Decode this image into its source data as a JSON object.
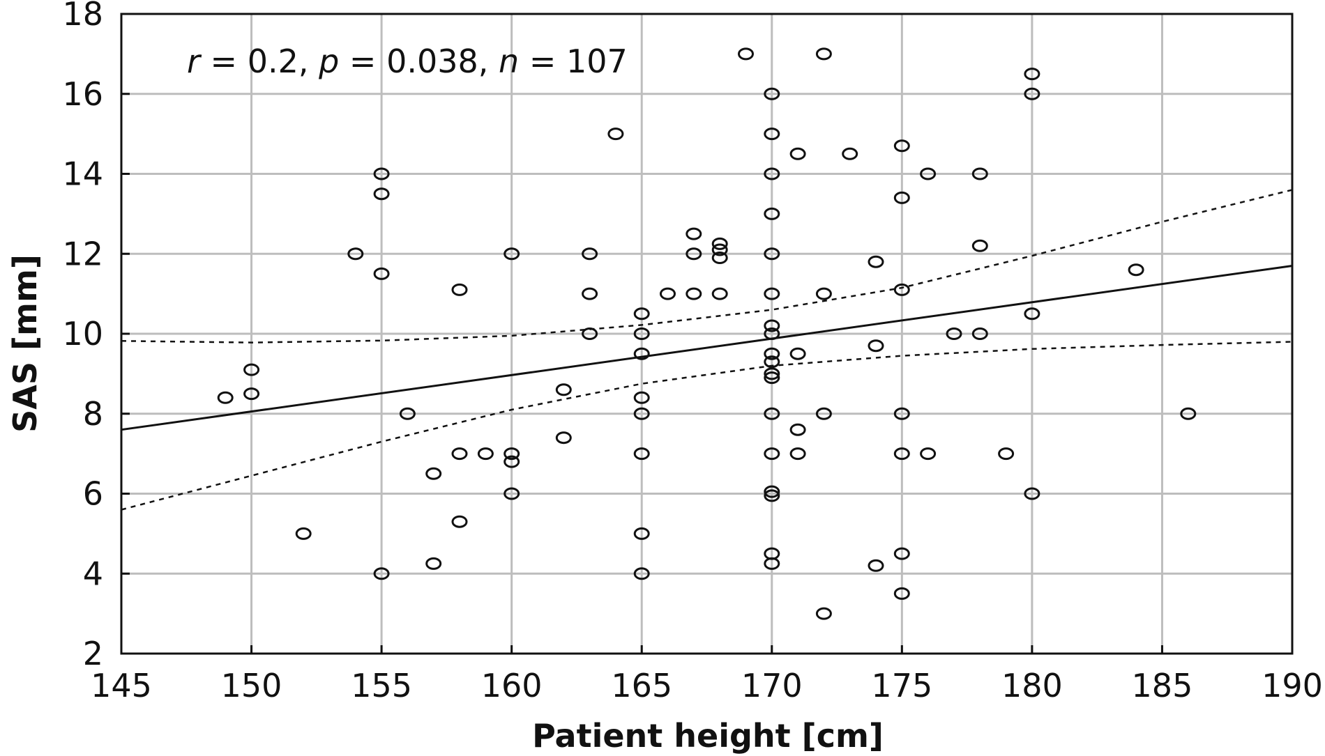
{
  "chart_data": {
    "type": "scatter",
    "title": "",
    "xlabel": "Patient height [cm]",
    "ylabel": "SAS [mm]",
    "xlim": [
      145,
      190
    ],
    "ylim": [
      2,
      18
    ],
    "xticks": [
      145,
      150,
      155,
      160,
      165,
      170,
      175,
      180,
      185,
      190
    ],
    "yticks": [
      2,
      4,
      6,
      8,
      10,
      12,
      14,
      16,
      18
    ],
    "grid": true,
    "annotation": {
      "r_symbol": "r",
      "r_value": " = 0.2, ",
      "p_symbol": "p",
      "p_value": " = 0.038, ",
      "n_symbol": "n",
      "n_value": " = 107"
    },
    "points": [
      [
        149,
        8.4
      ],
      [
        150,
        9.1
      ],
      [
        150,
        8.5
      ],
      [
        152,
        5.0
      ],
      [
        154,
        12.0
      ],
      [
        155,
        14.0
      ],
      [
        155,
        13.5
      ],
      [
        155,
        11.5
      ],
      [
        155,
        4.0
      ],
      [
        156,
        8.0
      ],
      [
        157,
        6.5
      ],
      [
        157,
        4.25
      ],
      [
        158,
        11.1
      ],
      [
        158,
        7.0
      ],
      [
        158,
        5.3
      ],
      [
        159,
        7.0
      ],
      [
        160,
        12.0
      ],
      [
        160,
        7.0
      ],
      [
        160,
        6.8
      ],
      [
        160,
        6.0
      ],
      [
        162,
        8.6
      ],
      [
        162,
        7.4
      ],
      [
        163,
        12.0
      ],
      [
        163,
        11.0
      ],
      [
        163,
        10.0
      ],
      [
        164,
        15.0
      ],
      [
        165,
        10.5
      ],
      [
        165,
        10.0
      ],
      [
        165,
        9.5
      ],
      [
        165,
        8.4
      ],
      [
        165,
        8.0
      ],
      [
        165,
        7.0
      ],
      [
        165,
        5.0
      ],
      [
        165,
        4.0
      ],
      [
        166,
        11.0
      ],
      [
        167,
        12.5
      ],
      [
        167,
        12.0
      ],
      [
        167,
        11.0
      ],
      [
        168,
        12.25
      ],
      [
        168,
        12.1
      ],
      [
        168,
        11.9
      ],
      [
        168,
        11.0
      ],
      [
        169,
        17.0
      ],
      [
        170,
        16.0
      ],
      [
        170,
        15.0
      ],
      [
        170,
        14.0
      ],
      [
        170,
        13.0
      ],
      [
        170,
        12.0
      ],
      [
        170,
        11.0
      ],
      [
        170,
        10.2
      ],
      [
        170,
        10.0
      ],
      [
        170,
        9.5
      ],
      [
        170,
        9.3
      ],
      [
        170,
        9.0
      ],
      [
        170,
        8.9
      ],
      [
        170,
        8.0
      ],
      [
        170,
        7.0
      ],
      [
        170,
        6.05
      ],
      [
        170,
        5.95
      ],
      [
        170,
        4.5
      ],
      [
        170,
        4.25
      ],
      [
        171,
        14.5
      ],
      [
        171,
        9.5
      ],
      [
        171,
        7.6
      ],
      [
        171,
        7.0
      ],
      [
        172,
        17.0
      ],
      [
        172,
        11.0
      ],
      [
        172,
        8.0
      ],
      [
        172,
        3.0
      ],
      [
        173,
        14.5
      ],
      [
        174,
        11.8
      ],
      [
        174,
        9.7
      ],
      [
        174,
        4.2
      ],
      [
        175,
        14.7
      ],
      [
        175,
        13.4
      ],
      [
        175,
        11.1
      ],
      [
        175,
        8.0
      ],
      [
        175,
        7.0
      ],
      [
        175,
        4.5
      ],
      [
        175,
        3.5
      ],
      [
        176,
        14.0
      ],
      [
        176,
        7.0
      ],
      [
        177,
        10.0
      ],
      [
        178,
        14.0
      ],
      [
        178,
        12.2
      ],
      [
        178,
        10.0
      ],
      [
        179,
        7.0
      ],
      [
        180,
        16.5
      ],
      [
        180,
        16.0
      ],
      [
        180,
        10.5
      ],
      [
        180,
        6.0
      ],
      [
        184,
        11.6
      ],
      [
        186,
        8.0
      ]
    ],
    "regression": {
      "x": [
        145,
        190
      ],
      "y": [
        7.6,
        11.7
      ]
    },
    "confidence_upper": {
      "x": [
        145,
        150,
        155,
        160,
        165,
        170,
        175,
        180,
        185,
        190
      ],
      "y": [
        9.82,
        9.78,
        9.83,
        9.95,
        10.22,
        10.6,
        11.15,
        11.95,
        12.8,
        13.6
      ]
    },
    "confidence_lower": {
      "x": [
        145,
        150,
        155,
        160,
        165,
        170,
        175,
        180,
        185,
        190
      ],
      "y": [
        5.6,
        6.45,
        7.3,
        8.1,
        8.75,
        9.2,
        9.45,
        9.62,
        9.72,
        9.8
      ]
    }
  }
}
